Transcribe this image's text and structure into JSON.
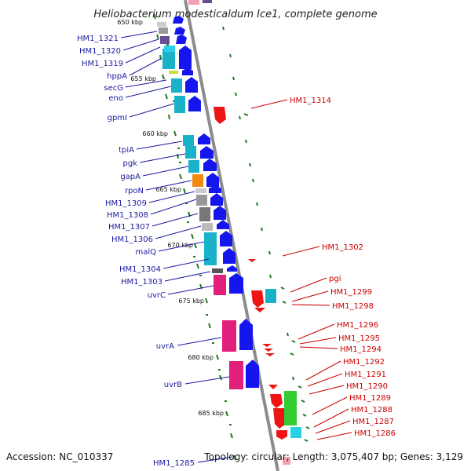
{
  "title": "Heliobacterium modesticaldum Ice1, complete genome",
  "footer": {
    "accession": "Accession: NC_010337",
    "topology": "Topology: circular; Length: 3,075,407 bp; Genes: 3,129"
  },
  "colors": {
    "axis": "#8c8c8c",
    "tick": "#1f7a1f",
    "blue_label": "#1a1aa0",
    "red_label": "#cc0000"
  },
  "kbp_ticks": [
    "650 kbp",
    "655 kbp",
    "660 kbp",
    "665 kbp",
    "670 kbp",
    "675 kbp",
    "680 kbp",
    "685 kbp"
  ],
  "left_labels": [
    "HM1_1321",
    "HM1_1320",
    "HM1_1319",
    "hppA",
    "secG",
    "eno",
    "gpmI",
    "tpiA",
    "pgk",
    "gapA",
    "rpoN",
    "HM1_1309",
    "HM1_1308",
    "HM1_1307",
    "HM1_1306",
    "malQ",
    "HM1_1304",
    "HM1_1303",
    "uvrC",
    "uvrA",
    "uvrB",
    "HM1_1285"
  ],
  "right_labels": [
    "HM1_1314",
    "HM1_1302",
    "pgi",
    "HM1_1299",
    "HM1_1298",
    "HM1_1296",
    "HM1_1295",
    "HM1_1294",
    "HM1_1292",
    "HM1_1291",
    "HM1_1290",
    "HM1_1289",
    "HM1_1288",
    "HM1_1287",
    "HM1_1286"
  ]
}
